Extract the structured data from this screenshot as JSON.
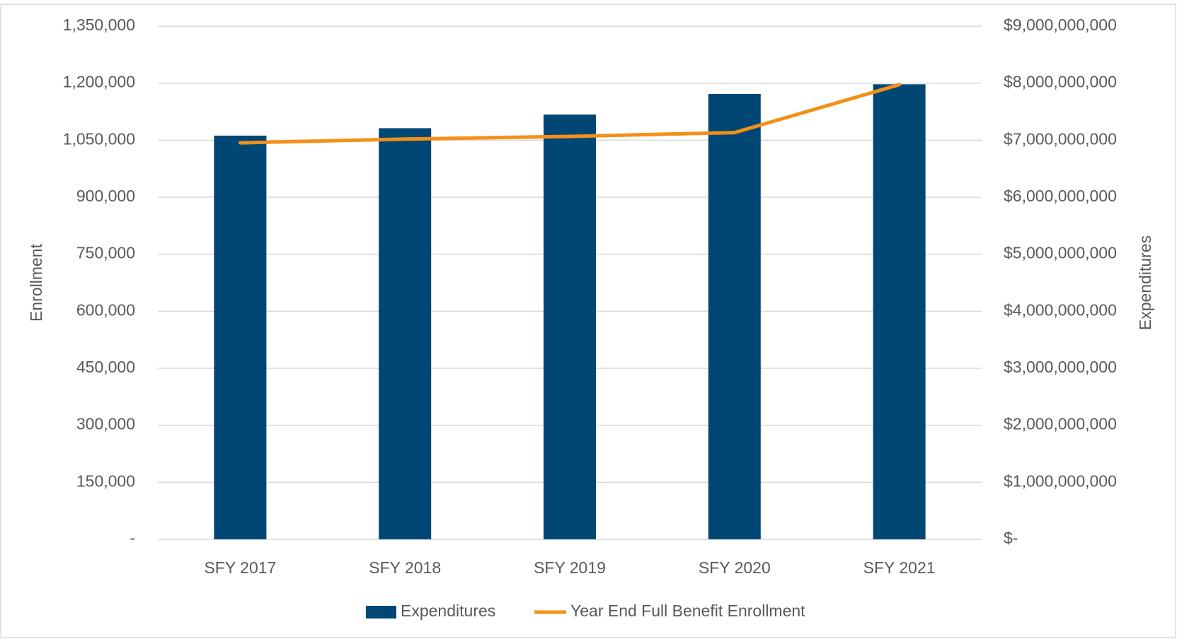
{
  "chart_data": {
    "type": "bar_line",
    "categories": [
      "SFY 2017",
      "SFY 2018",
      "SFY 2019",
      "SFY 2020",
      "SFY 2021"
    ],
    "series": [
      {
        "name": "Expenditures",
        "type": "bar",
        "axis": "y2",
        "color": "#004775",
        "values": [
          7080000000,
          7210000000,
          7450000000,
          7810000000,
          7980000000
        ]
      },
      {
        "name": "Year End Full Benefit Enrollment",
        "type": "line",
        "axis": "y",
        "color": "#f39019",
        "values": [
          1043000,
          1053000,
          1060000,
          1070000,
          1196000
        ]
      }
    ],
    "ylabel": "Enrollment",
    "y2label": "Expenditures",
    "ylim": [
      0,
      1350000
    ],
    "yticks": [
      {
        "value": 0,
        "label": "-"
      },
      {
        "value": 150000,
        "label": "150,000"
      },
      {
        "value": 300000,
        "label": "300,000"
      },
      {
        "value": 450000,
        "label": "450,000"
      },
      {
        "value": 600000,
        "label": "600,000"
      },
      {
        "value": 750000,
        "label": "750,000"
      },
      {
        "value": 900000,
        "label": "900,000"
      },
      {
        "value": 1050000,
        "label": "1,050,000"
      },
      {
        "value": 1200000,
        "label": "1,200,000"
      },
      {
        "value": 1350000,
        "label": "1,350,000"
      }
    ],
    "y2lim": [
      0,
      9000000000
    ],
    "y2ticks": [
      {
        "value": 0,
        "label": "$-"
      },
      {
        "value": 1000000000,
        "label": "$1,000,000,000"
      },
      {
        "value": 2000000000,
        "label": "$2,000,000,000"
      },
      {
        "value": 3000000000,
        "label": "$3,000,000,000"
      },
      {
        "value": 4000000000,
        "label": "$4,000,000,000"
      },
      {
        "value": 5000000000,
        "label": "$5,000,000,000"
      },
      {
        "value": 6000000000,
        "label": "$6,000,000,000"
      },
      {
        "value": 7000000000,
        "label": "$7,000,000,000"
      },
      {
        "value": 8000000000,
        "label": "$8,000,000,000"
      },
      {
        "value": 9000000000,
        "label": "$9,000,000,000"
      }
    ],
    "grid": true,
    "legend": "bottom"
  }
}
